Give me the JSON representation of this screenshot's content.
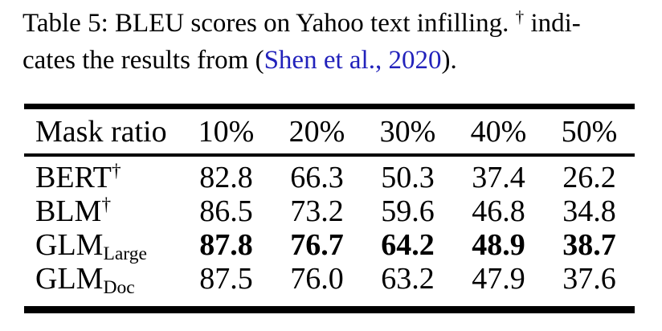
{
  "caption": {
    "line1_main": "Table 5: BLEU scores on Yahoo text infilling.",
    "dagger": "†",
    "line1_tail": "indi-",
    "line2_pre": "cates the results from (",
    "citation": "Shen et al., 2020",
    "line2_post": ")."
  },
  "table": {
    "header": [
      "Mask ratio",
      "10%",
      "20%",
      "30%",
      "40%",
      "50%"
    ],
    "rows": [
      {
        "model": "BERT",
        "sup": "†",
        "sub": "",
        "values": [
          "82.8",
          "66.3",
          "50.3",
          "37.4",
          "26.2"
        ]
      },
      {
        "model": "BLM",
        "sup": "†",
        "sub": "",
        "values": [
          "86.5",
          "73.2",
          "59.6",
          "46.8",
          "34.8"
        ]
      },
      {
        "model": "GLM",
        "sup": "",
        "sub": "Large",
        "values": [
          "87.8",
          "76.7",
          "64.2",
          "48.9",
          "38.7"
        ]
      },
      {
        "model": "GLM",
        "sup": "",
        "sub": "Doc",
        "values": [
          "87.5",
          "76.0",
          "63.2",
          "47.9",
          "37.6"
        ]
      }
    ]
  },
  "colors": {
    "citation": "#2222bb",
    "text": "#000000",
    "background": "#ffffff",
    "rule": "#000000"
  }
}
